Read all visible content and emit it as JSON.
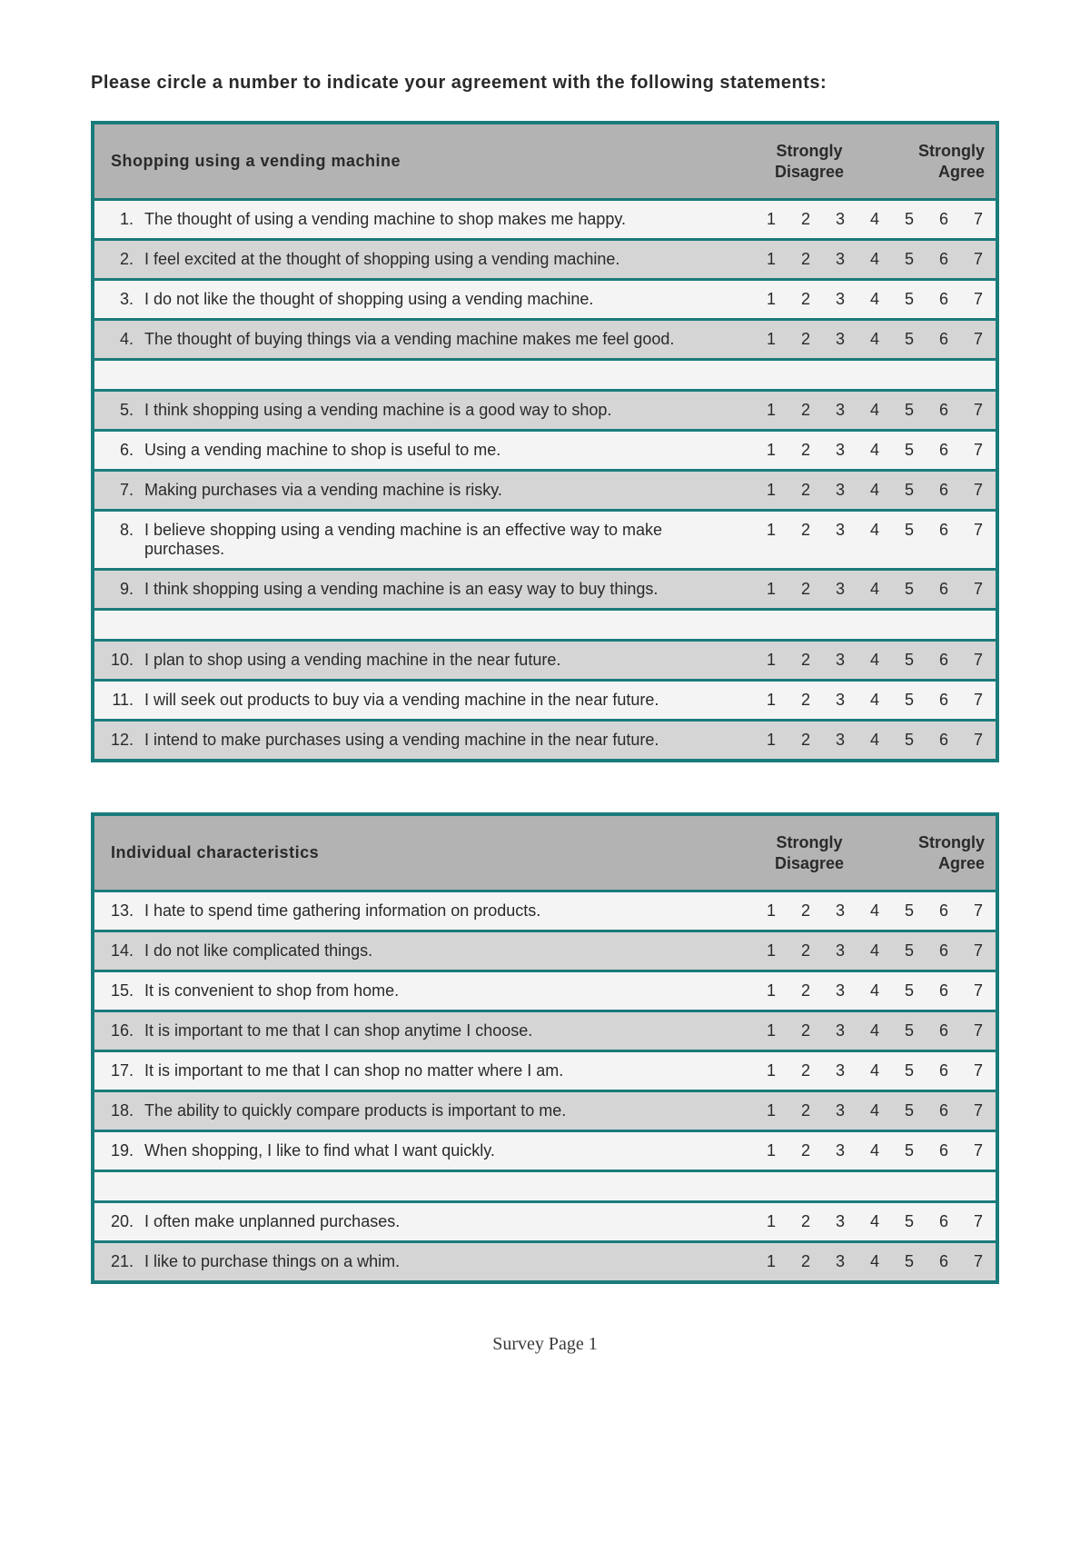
{
  "instruction": "Please circle a number to indicate your agreement with the following statements:",
  "scale_values": [
    "1",
    "2",
    "3",
    "4",
    "5",
    "6",
    "7"
  ],
  "anchor_left": "Strongly\nDisagree",
  "anchor_right": "Strongly\nAgree",
  "colors": {
    "border": "#1a7b7b",
    "header_bg": "#b3b3b3",
    "row_shade": "#d5d5d5",
    "row_light": "#f4f4f4",
    "page_bg": "#ffffff",
    "text": "#2a2a2a"
  },
  "tables": [
    {
      "title": "Shopping using a vending machine",
      "groups": [
        [
          {
            "n": "1.",
            "text": "The thought of using a vending machine to shop makes me happy.",
            "shade": false
          },
          {
            "n": "2.",
            "text": "I feel excited at the thought of shopping using a vending machine.",
            "shade": true
          },
          {
            "n": "3.",
            "text": "I do not like the thought of shopping using a vending machine.",
            "shade": false
          },
          {
            "n": "4.",
            "text": "The thought of buying things via a vending machine makes me feel good.",
            "shade": true
          }
        ],
        [
          {
            "n": "5.",
            "text": "I think shopping using a vending machine is a good way to shop.",
            "shade": true
          },
          {
            "n": "6.",
            "text": "Using a vending machine to shop is useful to me.",
            "shade": false
          },
          {
            "n": "7.",
            "text": "Making purchases via a vending machine is risky.",
            "shade": true
          },
          {
            "n": "8.",
            "text": "I believe shopping using a vending machine is an effective way to make purchases.",
            "shade": false
          },
          {
            "n": "9.",
            "text": "I think shopping using a vending machine is an easy way to buy things.",
            "shade": true
          }
        ],
        [
          {
            "n": "10.",
            "text": "I plan to shop using a vending machine in the near future.",
            "shade": true
          },
          {
            "n": "11.",
            "text": "I will seek out products to buy via a vending machine in the near future.",
            "shade": false
          },
          {
            "n": "12.",
            "text": "I intend to make purchases using a vending machine in the near future.",
            "shade": true
          }
        ]
      ]
    },
    {
      "title": "Individual characteristics",
      "groups": [
        [
          {
            "n": "13.",
            "text": "I hate to spend time gathering information on products.",
            "shade": false
          },
          {
            "n": "14.",
            "text": "I do not like complicated things.",
            "shade": true
          },
          {
            "n": "15.",
            "text": "It is convenient to shop from home.",
            "shade": false
          },
          {
            "n": "16.",
            "text": "It is important to me that I can shop anytime I choose.",
            "shade": true
          },
          {
            "n": "17.",
            "text": "It is important to me that I can shop no matter where I am.",
            "shade": false
          },
          {
            "n": "18.",
            "text": "The ability to quickly compare products is important to me.",
            "shade": true
          },
          {
            "n": "19.",
            "text": "When shopping, I like to find what I want quickly.",
            "shade": false
          }
        ],
        [
          {
            "n": "20.",
            "text": "I often make unplanned purchases.",
            "shade": false
          },
          {
            "n": "21.",
            "text": "I like to purchase things on a whim.",
            "shade": true
          }
        ]
      ]
    }
  ],
  "footer": "Survey Page 1"
}
